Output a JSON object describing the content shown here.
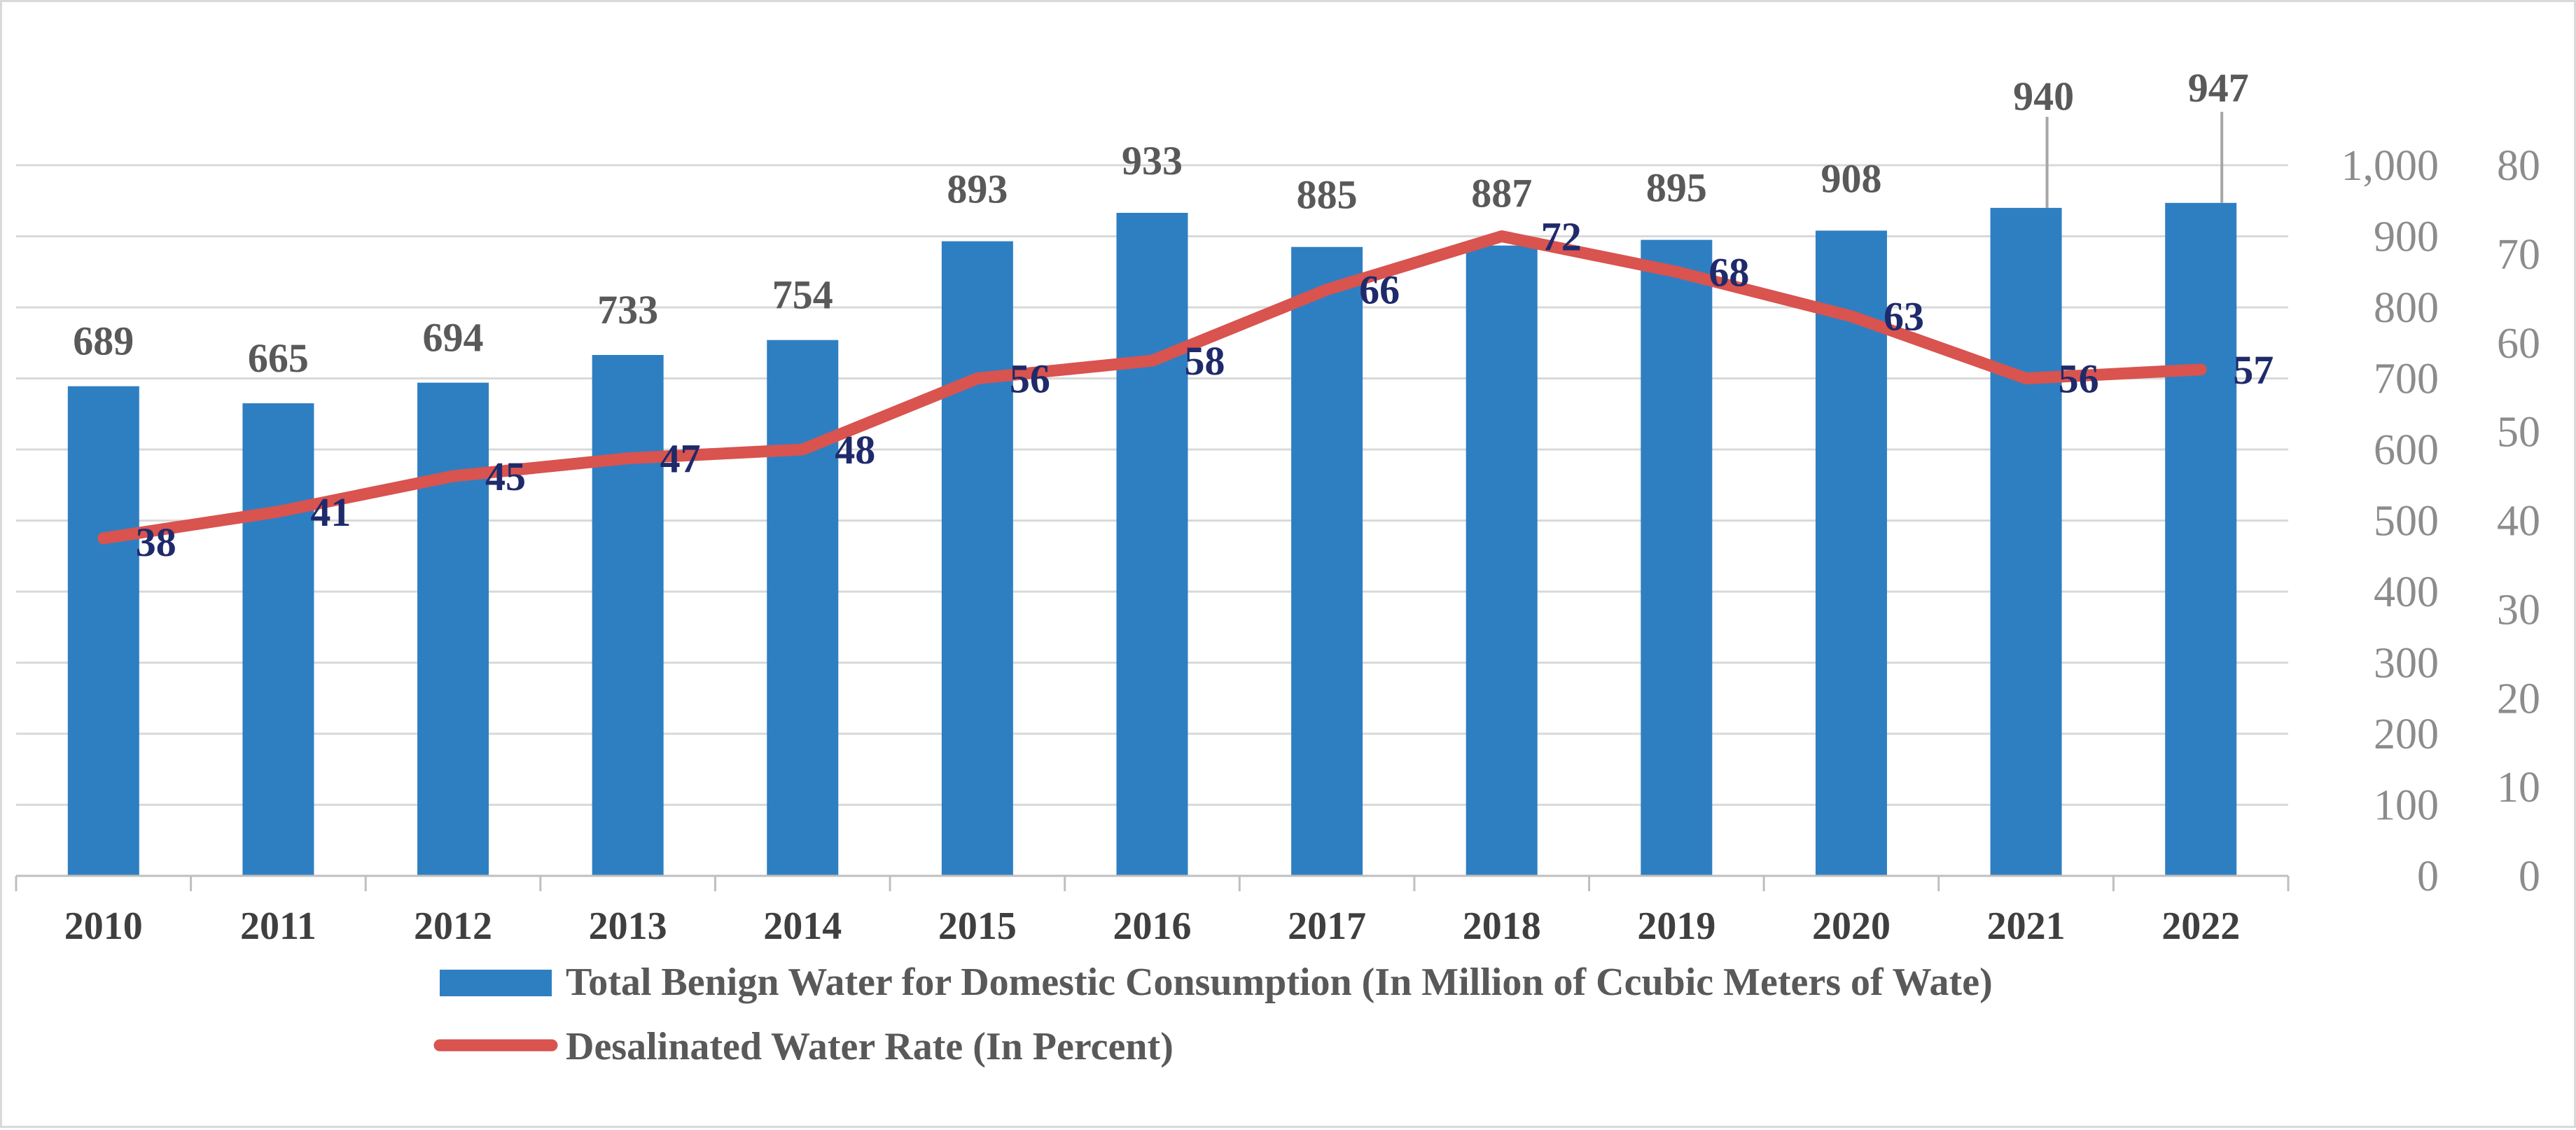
{
  "chart_data": {
    "type": "bar",
    "title": "",
    "xlabel": "",
    "ylabel": "",
    "categories": [
      "2010",
      "2011",
      "2012",
      "2013",
      "2014",
      "2015",
      "2016",
      "2017",
      "2018",
      "2019",
      "2020",
      "2021",
      "2022"
    ],
    "series": [
      {
        "name": "Total Benign Water for Domestic Consumption (In Million of Ccubic Meters of Wate)",
        "type": "bar",
        "axis": "left",
        "color": "#2e7fc2",
        "values": [
          689,
          665,
          694,
          733,
          754,
          893,
          933,
          885,
          887,
          895,
          908,
          940,
          947
        ]
      },
      {
        "name": "Desalinated Water Rate (In Percent)",
        "type": "line",
        "axis": "right",
        "color": "#d9534f",
        "values": [
          38,
          41,
          45,
          47,
          48,
          56,
          58,
          66,
          72,
          68,
          63,
          56,
          57
        ]
      }
    ],
    "y_primary": {
      "ylim": [
        0,
        1000
      ],
      "ticks": [
        "0",
        "100",
        "200",
        "300",
        "400",
        "500",
        "600",
        "700",
        "800",
        "900",
        "1,000"
      ]
    },
    "y_secondary": {
      "ylim": [
        0,
        80
      ],
      "ticks": [
        "0",
        "10",
        "20",
        "30",
        "40",
        "50",
        "60",
        "70",
        "80"
      ]
    },
    "grid": true,
    "legend_position": "bottom"
  }
}
